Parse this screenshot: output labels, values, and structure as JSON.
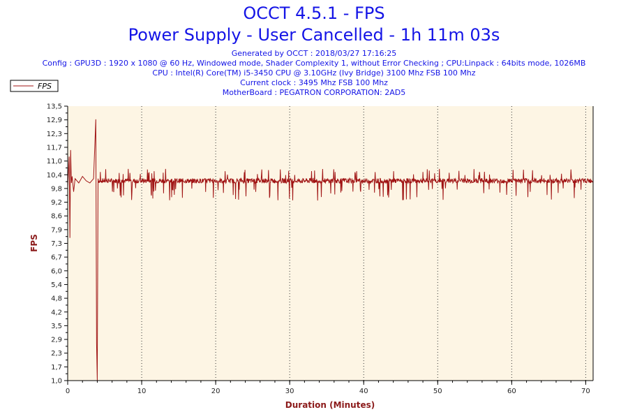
{
  "header": {
    "title": "OCCT 4.5.1 - FPS",
    "subtitle": "Power Supply - User Cancelled - 1h 11m 03s",
    "info_lines": [
      "Generated by OCCT : 2018/03/27 17:16:25",
      "Config : GPU3D : 1920 x 1080 @ 60 Hz, Windowed mode, Shader Complexity 1, without Error Checking ; CPU:Linpack : 64bits mode, 1026MB",
      "CPU : Intel(R) Core(TM) i5-3450 CPU @ 3.10GHz (Ivy Bridge) 3100 Mhz FSB 100 Mhz",
      "Current clock : 3495 Mhz FSB 100 Mhz",
      "MotherBoard : PEGATRON CORPORATION: 2AD5"
    ]
  },
  "colors": {
    "line": "#a01414",
    "plot_background": "#fdf5e4",
    "text_blue": "#1414e6",
    "axis_title": "#8b1a1a"
  },
  "chart_data": {
    "type": "line",
    "xlabel": "Duration (Minutes)",
    "ylabel": "FPS",
    "xlim": [
      0,
      71
    ],
    "ylim": [
      1.0,
      13.5
    ],
    "x_ticks": [
      "0",
      "10",
      "20",
      "30",
      "40",
      "50",
      "60",
      "70"
    ],
    "y_ticks": [
      "1,0",
      "1,7",
      "2,3",
      "2,9",
      "3,5",
      "4,2",
      "4,8",
      "5,4",
      "6,0",
      "6,7",
      "7,3",
      "7,9",
      "8,6",
      "9,2",
      "9,8",
      "10,4",
      "11,0",
      "11,7",
      "12,3",
      "12,9",
      "13,5"
    ],
    "grid": true,
    "grid_axis": "x",
    "legend_position": "top-left",
    "series": [
      {
        "name": "FPS",
        "baseline": 10.1,
        "x": [
          0,
          0.2,
          0.3,
          0.4,
          0.5,
          0.6,
          0.8,
          1.0,
          1.5,
          2.0,
          2.5,
          3.0,
          3.5,
          3.8,
          3.9,
          4.0,
          4.1,
          4.5,
          5,
          6,
          8,
          10,
          15,
          20,
          25,
          30,
          35,
          40,
          45,
          50,
          55,
          60,
          65,
          70,
          71
        ],
        "values": [
          9.8,
          11.2,
          7.5,
          11.5,
          10.0,
          10.3,
          9.6,
          10.2,
          10.0,
          10.3,
          10.1,
          10.0,
          10.2,
          12.9,
          2.7,
          1.0,
          10.2,
          10.1,
          10.1,
          10.1,
          10.1,
          10.1,
          10.1,
          10.1,
          10.1,
          10.1,
          10.1,
          10.1,
          10.1,
          10.1,
          10.1,
          10.1,
          10.1,
          10.1,
          10.1
        ]
      }
    ]
  }
}
